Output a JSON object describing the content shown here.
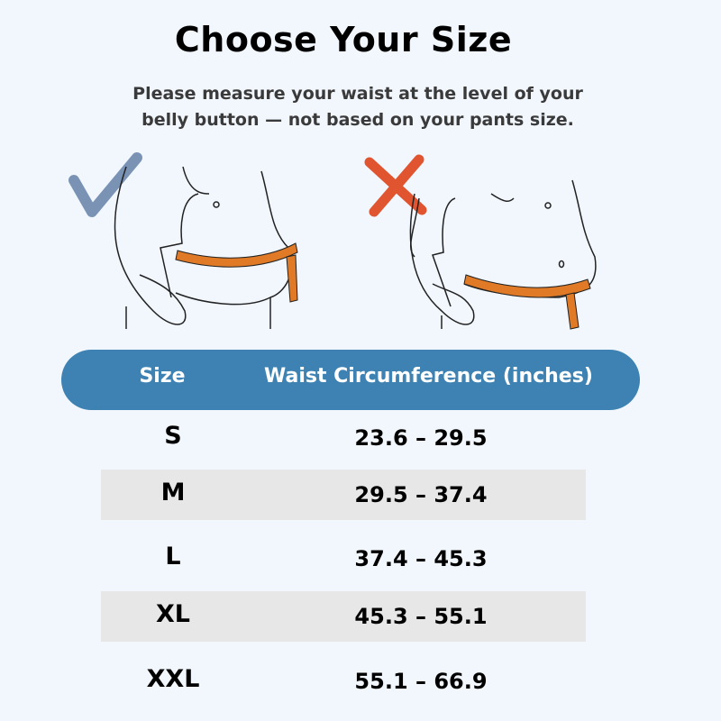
{
  "title": "Choose Your Size",
  "subtitle_line1": "Please measure your waist at the level of your",
  "subtitle_line2": "belly button — not based on your pants size.",
  "illustration": {
    "correct_icon": "checkmark-icon",
    "incorrect_icon": "cross-icon",
    "colors": {
      "check": "#7a93b5",
      "cross": "#e05530",
      "tape": "#e07a26"
    }
  },
  "table": {
    "headers": [
      "Size",
      "Waist Circumference (inches)"
    ],
    "header_color": "#3d82b2",
    "rows": [
      {
        "size": "S",
        "range": "23.6 – 29.5"
      },
      {
        "size": "M",
        "range": "29.5 – 37.4"
      },
      {
        "size": "L",
        "range": "37.4 – 45.3"
      },
      {
        "size": "XL",
        "range": "45.3 – 55.1"
      },
      {
        "size": "XXL",
        "range": "55.1 – 66.9"
      }
    ]
  }
}
